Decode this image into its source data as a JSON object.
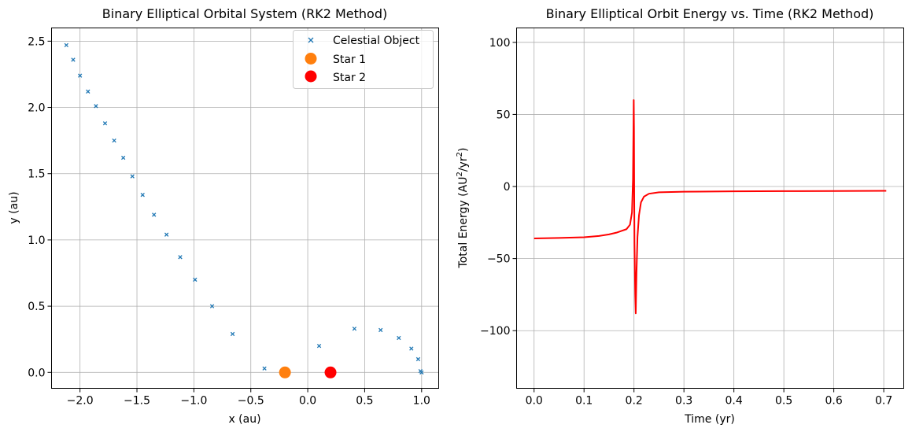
{
  "chart_data": [
    {
      "type": "scatter",
      "title": "Binary Elliptical Orbital System (RK2 Method)",
      "xlabel": "x (au)",
      "ylabel": "y (au)",
      "xlim": [
        -2.25,
        1.15
      ],
      "ylim": [
        -0.12,
        2.6
      ],
      "xticks": [
        -2.0,
        -1.5,
        -1.0,
        -0.5,
        0.0,
        0.5,
        1.0
      ],
      "xtick_labels": [
        "−2.0",
        "−1.5",
        "−1.0",
        "−0.5",
        "0.0",
        "0.5",
        "1.0"
      ],
      "yticks": [
        0.0,
        0.5,
        1.0,
        1.5,
        2.0,
        2.5
      ],
      "ytick_labels": [
        "0.0",
        "0.5",
        "1.0",
        "1.5",
        "2.0",
        "2.5"
      ],
      "grid": true,
      "legend_position": "top-right",
      "series": [
        {
          "name": "Celestial Object",
          "marker": "x",
          "color": "#1f77b4",
          "x": [
            -2.12,
            -2.06,
            -2.0,
            -1.93,
            -1.86,
            -1.78,
            -1.7,
            -1.62,
            -1.54,
            -1.45,
            -1.35,
            -1.24,
            -1.12,
            -0.99,
            -0.84,
            -0.66,
            -0.38,
            0.1,
            0.41,
            0.64,
            0.8,
            0.91,
            0.97,
            0.99,
            1.0
          ],
          "y": [
            2.47,
            2.36,
            2.24,
            2.12,
            2.01,
            1.88,
            1.75,
            1.62,
            1.48,
            1.34,
            1.19,
            1.04,
            0.87,
            0.7,
            0.5,
            0.29,
            0.03,
            0.2,
            0.33,
            0.32,
            0.26,
            0.18,
            0.1,
            0.01,
            0.0
          ]
        },
        {
          "name": "Star 1",
          "marker": "circle",
          "color": "#ff7f0e",
          "x": [
            -0.2
          ],
          "y": [
            0.0
          ]
        },
        {
          "name": "Star 2",
          "marker": "circle",
          "color": "#ff0000",
          "x": [
            0.2
          ],
          "y": [
            0.0
          ]
        }
      ]
    },
    {
      "type": "line",
      "title": "Binary Elliptical Orbit Energy vs. Time (RK2 Method)",
      "xlabel": "Time (yr)",
      "ylabel_parts": [
        "Total Energy (AU",
        "2",
        "/yr",
        "2",
        ")"
      ],
      "xlim": [
        -0.035,
        0.74
      ],
      "ylim": [
        -140,
        110
      ],
      "xticks": [
        0.0,
        0.1,
        0.2,
        0.3,
        0.4,
        0.5,
        0.6,
        0.7
      ],
      "xtick_labels": [
        "0.0",
        "0.1",
        "0.2",
        "0.3",
        "0.4",
        "0.5",
        "0.6",
        "0.7"
      ],
      "yticks": [
        -100,
        -50,
        0,
        50,
        100
      ],
      "ytick_labels": [
        "−100",
        "−50",
        "0",
        "50",
        "100"
      ],
      "grid": true,
      "series": [
        {
          "color": "#ff0000",
          "x": [
            0.0,
            0.05,
            0.1,
            0.13,
            0.15,
            0.165,
            0.175,
            0.185,
            0.192,
            0.196,
            0.198,
            0.1995,
            0.2,
            0.2005,
            0.201,
            0.2025,
            0.2035,
            0.205,
            0.207,
            0.21,
            0.214,
            0.22,
            0.23,
            0.25,
            0.3,
            0.4,
            0.5,
            0.6,
            0.705
          ],
          "y": [
            -36,
            -35.7,
            -35.2,
            -34.3,
            -33.2,
            -32.0,
            -30.8,
            -29.6,
            -26.5,
            -18.0,
            5.0,
            60.0,
            40.0,
            -10.0,
            -40.0,
            -75.0,
            -88.0,
            -60.0,
            -35.0,
            -20.0,
            -11.0,
            -7.0,
            -5.0,
            -4.0,
            -3.6,
            -3.3,
            -3.2,
            -3.1,
            -3.0
          ]
        }
      ]
    }
  ]
}
